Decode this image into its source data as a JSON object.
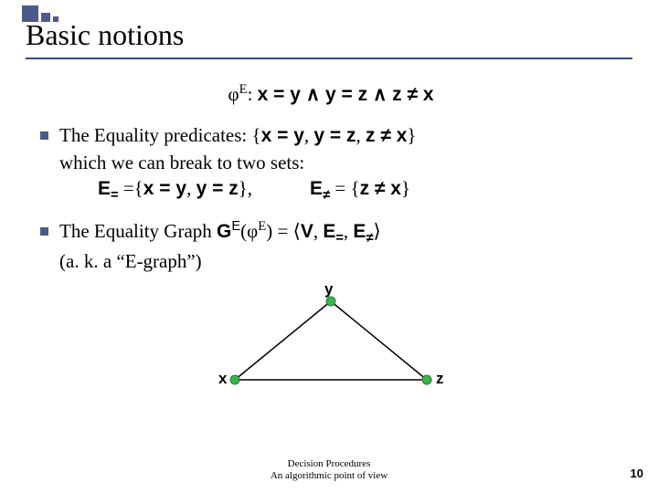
{
  "decor": {
    "square_color": "#4a5a8a",
    "rule_color": "#3a4a7a"
  },
  "title": "Basic notions",
  "formula": {
    "prefix_sym": "φ",
    "prefix_sup": "E",
    "colon": ":  ",
    "body": "x = y ∧ y = z ∧ z ≠ x"
  },
  "bullets": [
    {
      "line1_a": "The Equality predicates: {",
      "line1_b": "x = y",
      "line1_c": ", ",
      "line1_d": "y = z",
      "line1_e": ", ",
      "line1_f": "z ≠ x",
      "line1_g": "}",
      "line2": "which we can break to two sets:",
      "line3_E1_pre": "E",
      "line3_E1_sub": "=",
      "line3_E1_def": " ={",
      "line3_E1_set_a": "x = y",
      "line3_E1_set_b": ", ",
      "line3_E1_set_c": "y = z",
      "line3_E1_set_d": "},",
      "gap": "            ",
      "line3_E2_pre": "E",
      "line3_E2_sub": "≠",
      "line3_E2_def": " = {",
      "line3_E2_set": "z ≠ x",
      "line3_E2_end": "}"
    },
    {
      "line1_a": "The Equality Graph ",
      "line1_G": "G",
      "line1_Gsup": "E",
      "line1_b": "(",
      "line1_phi": "φ",
      "line1_phisup": "E",
      "line1_c": ") = ⟨",
      "line1_V": "V",
      "line1_comma1": ", ",
      "line1_Eeq": "E",
      "line1_Eeq_sub": "=",
      "line1_comma2": ", ",
      "line1_Ene": "E",
      "line1_Ene_sub": "≠",
      "line1_d": "⟩",
      "line2": "(a. k. a “E-graph”)"
    }
  ],
  "graph": {
    "labels": {
      "top": "y",
      "left": "x",
      "right": "z"
    },
    "node_fill": "#3ab54a",
    "node_stroke": "#2a7a33",
    "line_color": "#000000",
    "points": {
      "y": [
        135,
        16
      ],
      "x": [
        30,
        102
      ],
      "z": [
        240,
        102
      ]
    },
    "label_fontsize": 17
  },
  "footer": {
    "line1": "Decision Procedures",
    "line2": "An algorithmic point of view"
  },
  "page": "10"
}
